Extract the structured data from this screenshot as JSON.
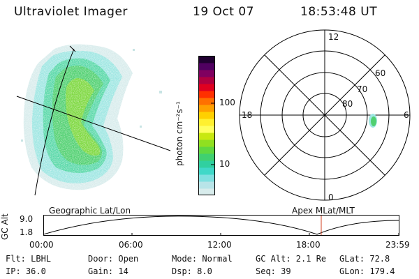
{
  "header": {
    "title": "Ultraviolet Imager",
    "date": "19 Oct 07",
    "time": "18:53:48 UT"
  },
  "colorbar": {
    "unit_label": "photon cm⁻²s⁻¹",
    "tick_100": "100",
    "tick_10": "10",
    "colors": [
      "#d8ecec",
      "#b8e4e8",
      "#80e0e0",
      "#40d8c8",
      "#30d0a0",
      "#40d070",
      "#60d840",
      "#90e020",
      "#c8e810",
      "#ffff60",
      "#fff030",
      "#ffd000",
      "#ffa000",
      "#ff7000",
      "#ff3000",
      "#e00020",
      "#b00040",
      "#800060",
      "#500060",
      "#200030"
    ]
  },
  "polar": {
    "mlt_12": "12",
    "mlt_18": "18",
    "mlt_6": "6",
    "mlt_0": "0",
    "lat_60": "60",
    "lat_70": "70",
    "lat_80": "80"
  },
  "timeline": {
    "left_label": "Geographic Lat/Lon",
    "right_label": "Apex MLat/MLT",
    "axis_title": "GC Alt",
    "y_top": "9.0",
    "y_bottom": "1.8",
    "times": [
      "00:00",
      "06:00",
      "12:00",
      "18:00",
      "23:59"
    ]
  },
  "footer": {
    "flt": "Flt: LBHL",
    "ip": "IP: 36.0",
    "door": "Door: Open",
    "gain": "Gain: 14",
    "mode": "Mode: Normal",
    "dsp": "Dsp:    8.0",
    "gcalt": "GC Alt: 2.1 Re",
    "seq": "Seq: 39",
    "glat": "GLat:  72.8",
    "glon": "GLon: 179.4"
  }
}
